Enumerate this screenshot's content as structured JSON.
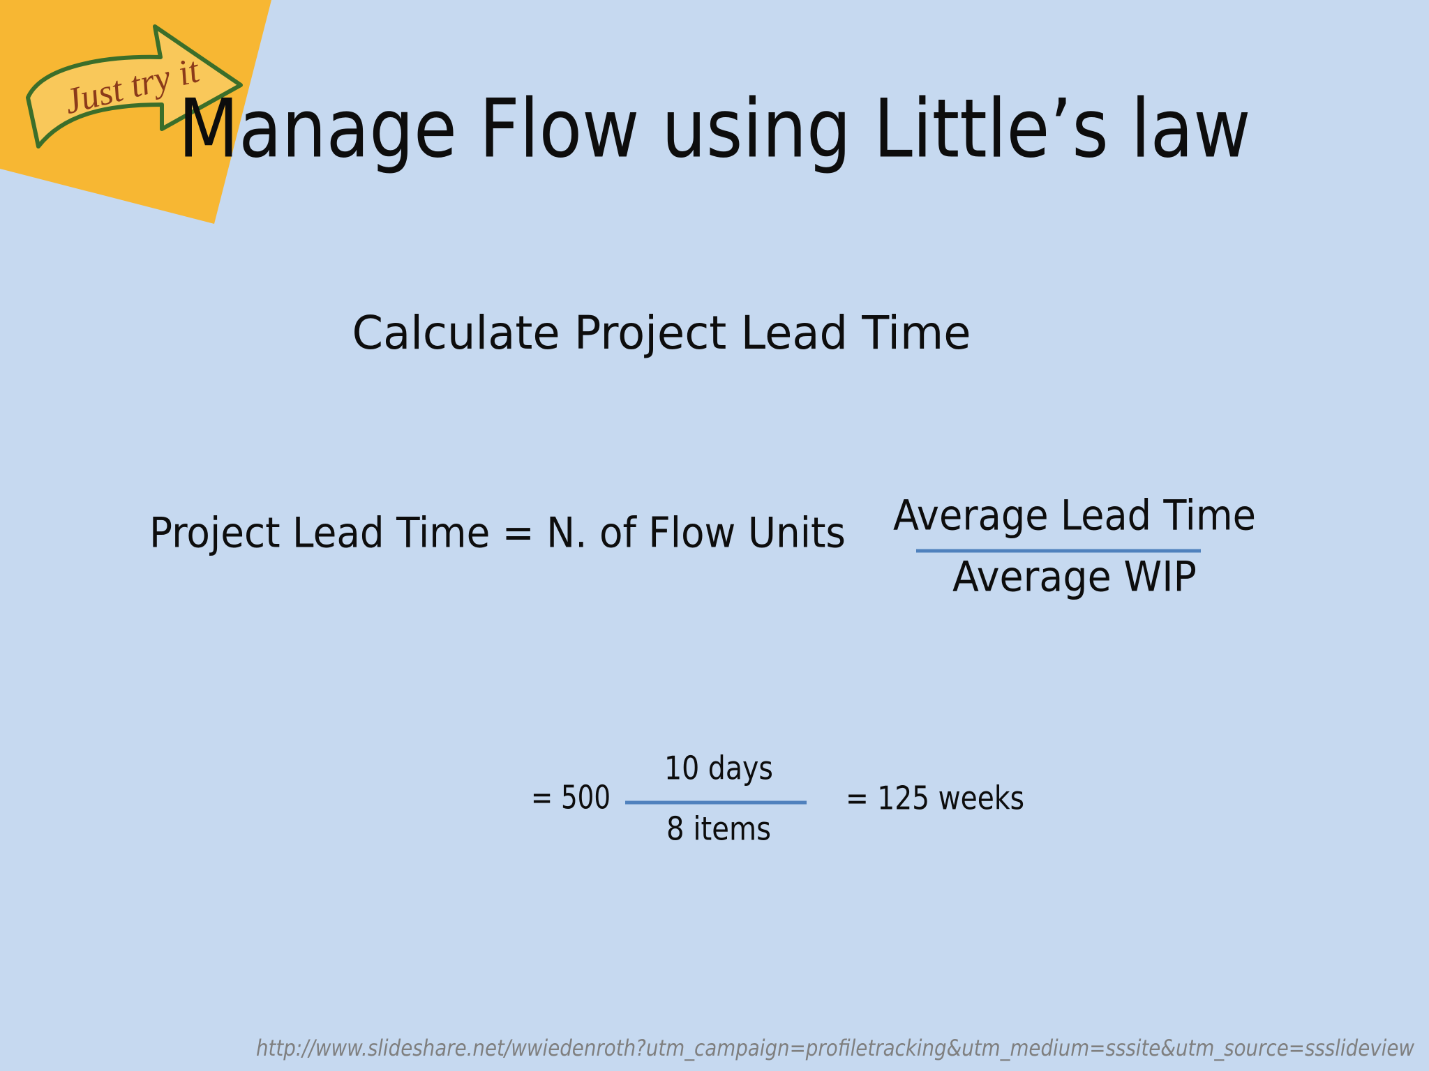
{
  "slide": {
    "title": "Manage Flow using Little’s law",
    "sticky_note": "Just try it",
    "subtitle": "Calculate Project Lead Time",
    "formula": {
      "lhs": "Project Lead Time = N. of Flow Units",
      "numerator": "Average Lead Time",
      "denominator": "Average WIP"
    },
    "example": {
      "lhs": "= 500",
      "numerator": "10 days",
      "denominator": "8 items",
      "result": "= 125 weeks"
    },
    "footer": "http://www.slideshare.net/wwiedenroth?utm_campaign=profiletracking&utm_medium=sssite&utm_source=ssslideview"
  }
}
